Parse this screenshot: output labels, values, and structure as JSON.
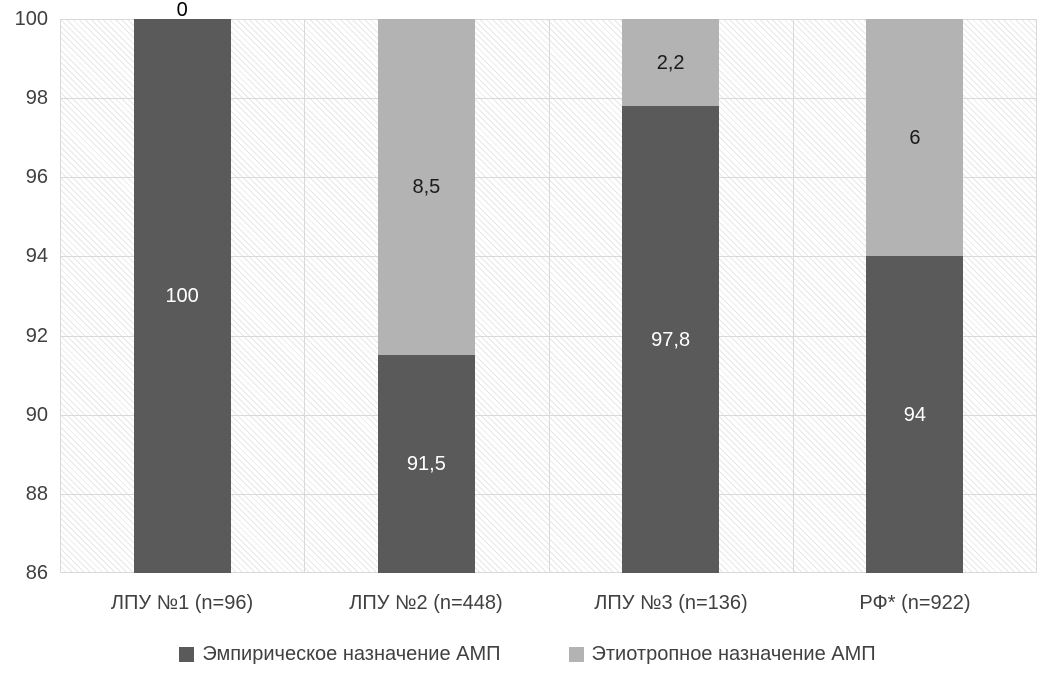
{
  "chart_data": {
    "type": "bar",
    "stacked": true,
    "orientation": "vertical",
    "categories": [
      "ЛПУ №1 (n=96)",
      "ЛПУ №2 (n=448)",
      "ЛПУ №3 (n=136)",
      "РФ* (n=922)"
    ],
    "series": [
      {
        "name": "Эмпирическое назначение АМП",
        "values": [
          100,
          91.5,
          97.8,
          94
        ],
        "labels": [
          "100",
          "91,5",
          "97,8",
          "94"
        ],
        "color": "#5a5a5a",
        "label_color": "#ffffff"
      },
      {
        "name": "Этиотропное назначение АМП",
        "values": [
          0,
          8.5,
          2.2,
          6
        ],
        "labels": [
          "0",
          "8,5",
          "2,2",
          "6"
        ],
        "color": "#b3b3b3",
        "label_color": "#1a1a1a"
      }
    ],
    "ylim": [
      86,
      100
    ],
    "yticks": [
      "86",
      "88",
      "90",
      "92",
      "94",
      "96",
      "98",
      "100"
    ],
    "grid": true,
    "gridline_color": "#d9d9d9",
    "plot_hatch": "light-downward-diagonal",
    "axis_text_color": "#404040",
    "legend_position": "bottom",
    "xlabel": "",
    "ylabel": "",
    "title": ""
  }
}
